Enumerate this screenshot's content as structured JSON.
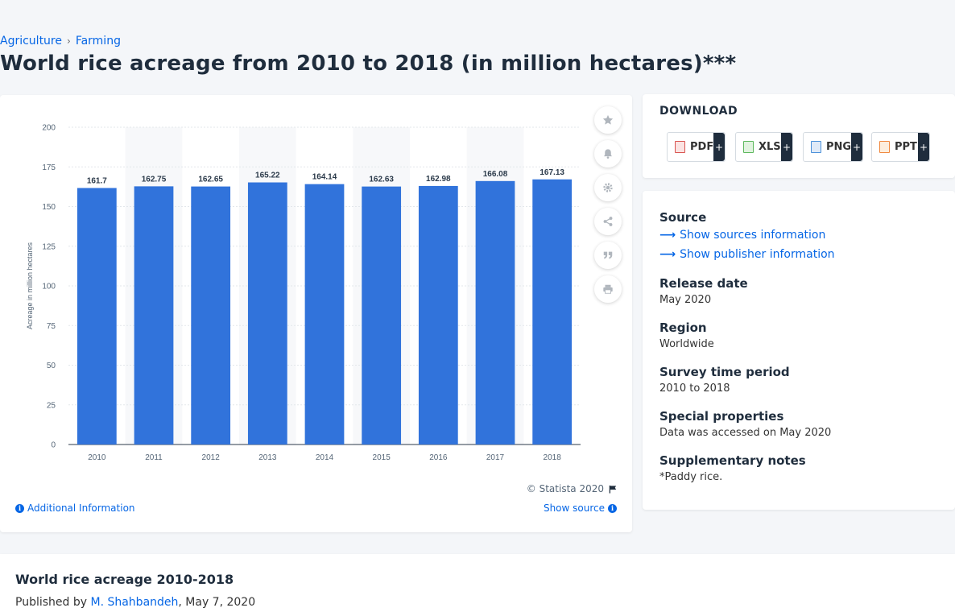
{
  "breadcrumb": {
    "items": [
      "Agriculture",
      "Farming"
    ],
    "separator": "›"
  },
  "page_title": "World rice acreage from 2010 to 2018 (in million hectares)***",
  "chart_data": {
    "type": "bar",
    "categories": [
      "2010",
      "2011",
      "2012",
      "2013",
      "2014",
      "2015",
      "2016",
      "2017",
      "2018"
    ],
    "values": [
      161.7,
      162.75,
      162.65,
      165.22,
      164.14,
      162.63,
      162.98,
      166.08,
      167.13
    ],
    "data_labels": [
      "161.7",
      "162.75",
      "162.65",
      "165.22",
      "164.14",
      "162.63",
      "162.98",
      "166.08",
      "167.13"
    ],
    "ylabel": "Acreage in million hectares",
    "xlabel": "",
    "ylim": [
      0,
      200
    ],
    "yticks": [
      "0",
      "25",
      "50",
      "75",
      "100",
      "125",
      "150",
      "175",
      "200"
    ],
    "grid": true,
    "bar_color": "#3173db"
  },
  "chart_footer": {
    "copyright": "© Statista 2020",
    "additional_info": "Additional Information",
    "show_source": "Show source"
  },
  "tools": [
    "star-icon",
    "bell-icon",
    "gear-icon",
    "share-icon",
    "quote-icon",
    "print-icon"
  ],
  "download": {
    "title": "DOWNLOAD",
    "buttons": [
      {
        "label": "PDF",
        "icon": "pdf-file-icon",
        "color": "#d9534f"
      },
      {
        "label": "XLS",
        "icon": "xls-file-icon",
        "color": "#5cb85c"
      },
      {
        "label": "PNG",
        "icon": "png-file-icon",
        "color": "#4a90d9"
      },
      {
        "label": "PPT",
        "icon": "ppt-file-icon",
        "color": "#f0883e"
      }
    ],
    "plus": "+"
  },
  "info": {
    "source_heading": "Source",
    "show_sources": "Show sources information",
    "show_publisher": "Show publisher information",
    "release_heading": "Release date",
    "release_value": "May 2020",
    "region_heading": "Region",
    "region_value": "Worldwide",
    "survey_heading": "Survey time period",
    "survey_value": "2010 to 2018",
    "special_heading": "Special properties",
    "special_value": "Data was accessed on May 2020",
    "notes_heading": "Supplementary notes",
    "notes_value": "*Paddy rice."
  },
  "bottom": {
    "title": "World rice acreage 2010-2018",
    "published_prefix": "Published by ",
    "author": "M. Shahbandeh",
    "date_suffix": ", May 7, 2020"
  }
}
